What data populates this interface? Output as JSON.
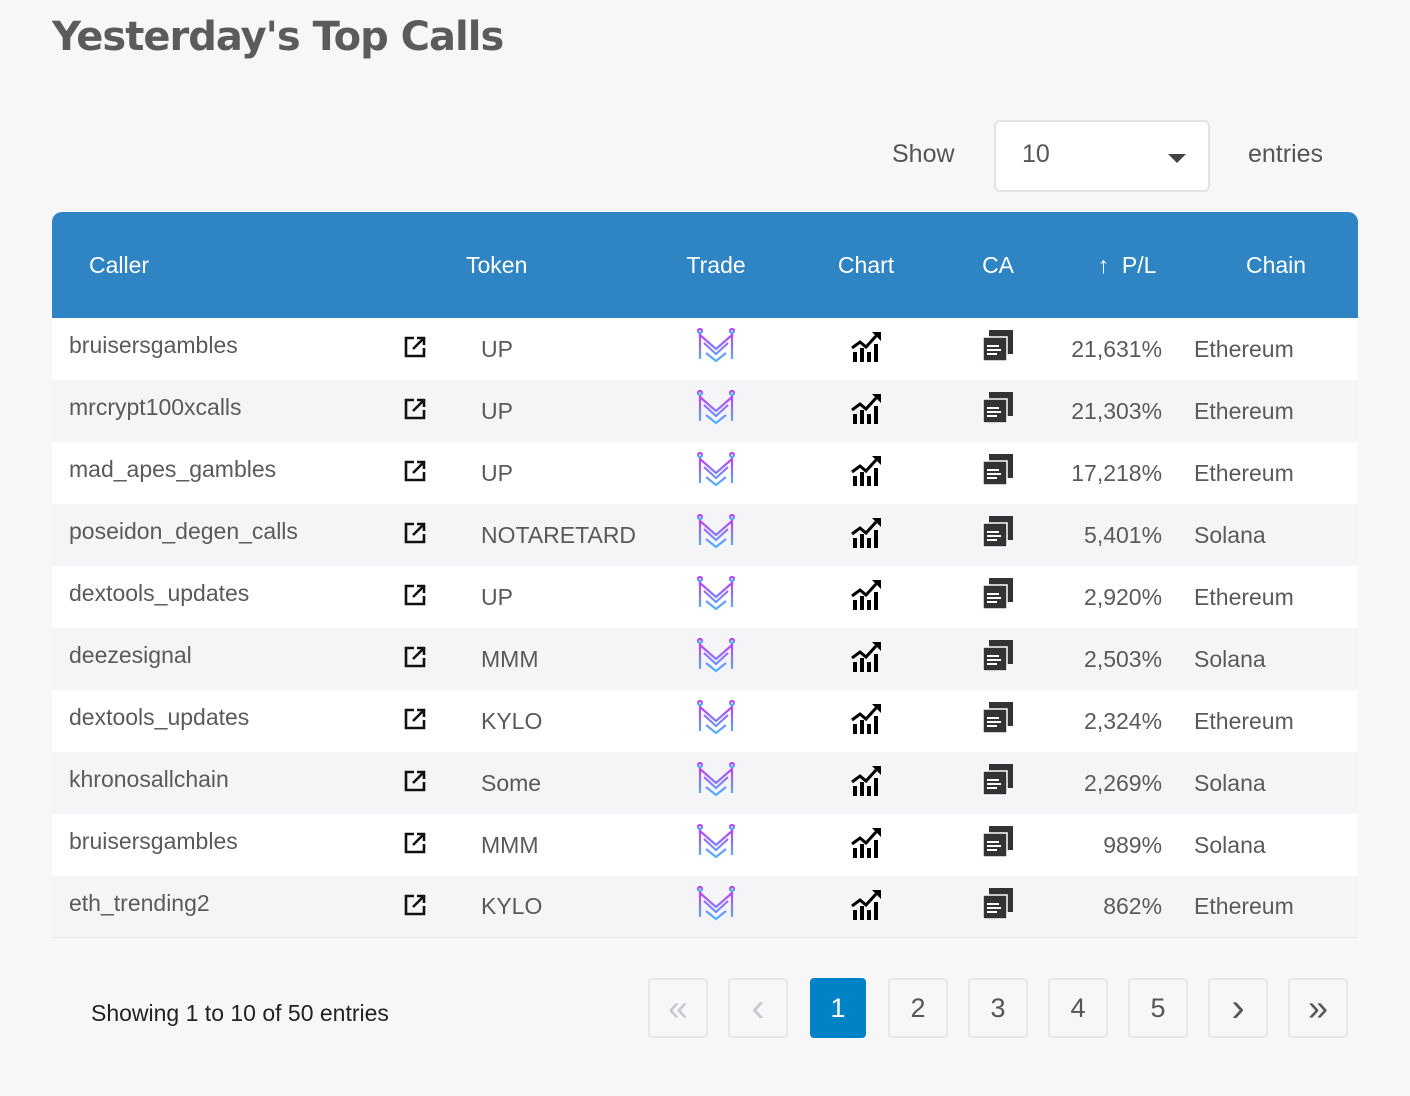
{
  "title": "Yesterday's Top Calls",
  "length": {
    "show": "Show",
    "value": "10",
    "entries": "entries"
  },
  "columns": [
    "Caller",
    "",
    "Token",
    "Trade",
    "Chart",
    "CA",
    "P/L",
    "Chain"
  ],
  "sort_icon": "arrow-up-icon",
  "rows": [
    {
      "caller": "bruisersgambles",
      "token": "UP",
      "pl": "21,631%",
      "chain": "Ethereum"
    },
    {
      "caller": "mrcrypt100xcalls",
      "token": "UP",
      "pl": "21,303%",
      "chain": "Ethereum"
    },
    {
      "caller": "mad_apes_gambles",
      "token": "UP",
      "pl": "17,218%",
      "chain": "Ethereum"
    },
    {
      "caller": "poseidon_degen_calls",
      "token": "NOTARETARD",
      "pl": "5,401%",
      "chain": "Solana"
    },
    {
      "caller": "dextools_updates",
      "token": "UP",
      "pl": "2,920%",
      "chain": "Ethereum"
    },
    {
      "caller": "deezesignal",
      "token": "MMM",
      "pl": "2,503%",
      "chain": "Solana"
    },
    {
      "caller": "dextools_updates",
      "token": "KYLO",
      "pl": "2,324%",
      "chain": "Ethereum"
    },
    {
      "caller": "khronosallchain",
      "token": "Some",
      "pl": "2,269%",
      "chain": "Solana"
    },
    {
      "caller": "bruisersgambles",
      "token": "MMM",
      "pl": "989%",
      "chain": "Solana"
    },
    {
      "caller": "eth_trending2",
      "token": "KYLO",
      "pl": "862%",
      "chain": "Ethereum"
    }
  ],
  "info": "Showing 1 to 10 of 50 entries",
  "pagination": {
    "first": "«",
    "prev": "‹",
    "pages": [
      "1",
      "2",
      "3",
      "4",
      "5"
    ],
    "next": "›",
    "last": "»",
    "current": "1"
  },
  "colors": {
    "header": "#2f84c4",
    "active_page": "#0083c6"
  }
}
